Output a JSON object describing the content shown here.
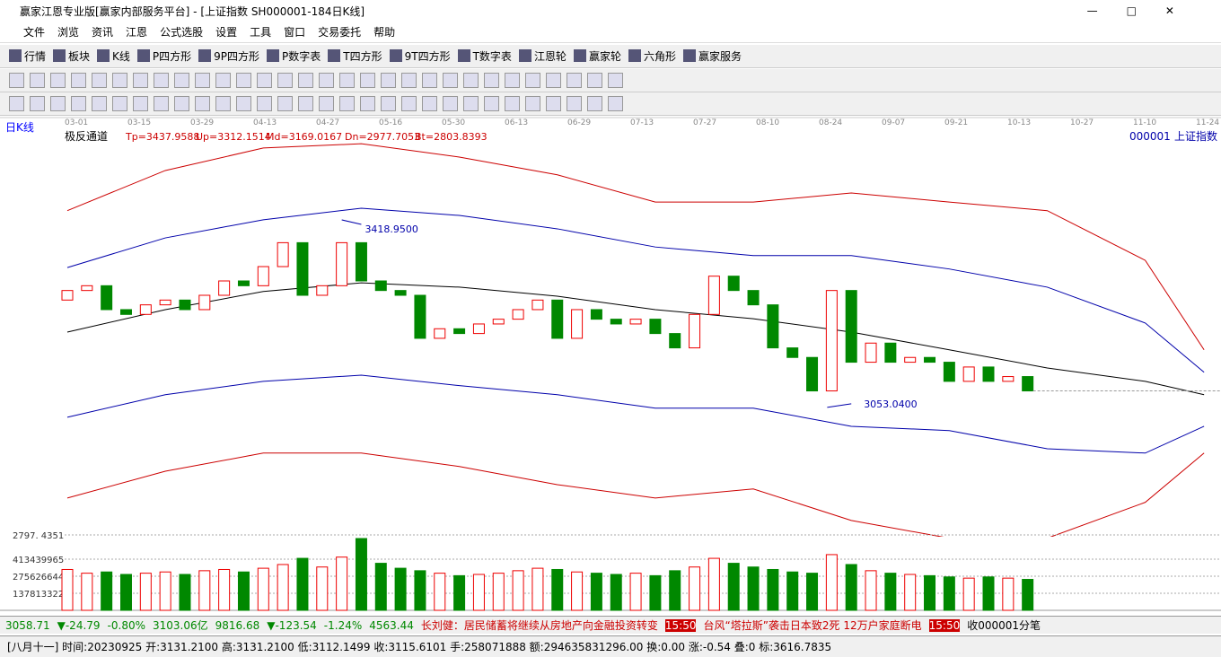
{
  "window_title": "赢家江恩专业版[赢家内部服务平台] - [上证指数  SH000001-184日K线]",
  "menu": [
    "文件",
    "浏览",
    "资讯",
    "江恩",
    "公式选股",
    "设置",
    "工具",
    "窗口",
    "交易委托",
    "帮助"
  ],
  "toolbar": [
    "行情",
    "板块",
    "K线",
    "P四方形",
    "9P四方形",
    "P数字表",
    "T四方形",
    "9T四方形",
    "T数字表",
    "江恩轮",
    "赢家轮",
    "六角形",
    "赢家服务"
  ],
  "chart_data": {
    "type": "candlestick",
    "period_label": "日K线",
    "indicator": "极反通道",
    "params": [
      "Tp=3437.9588",
      "Up=3312.1514",
      "Md=3169.0167",
      "Dn=2977.7053",
      "Bt=2803.8393"
    ],
    "code": "000001",
    "name": "上证指数",
    "dates": [
      "03-01",
      "03-15",
      "03-29",
      "04-13",
      "04-27",
      "05-16",
      "05-30",
      "06-13",
      "06-29",
      "07-13",
      "07-27",
      "08-10",
      "08-24",
      "09-07",
      "09-21",
      "10-13",
      "10-27",
      "11-10",
      "11-24"
    ],
    "high_label": "3418.9500",
    "high_value": 3418.95,
    "low_label": "3053.0400",
    "low_value": 3053.04,
    "ylim": [
      2760,
      3616
    ],
    "opens": [
      3270,
      3290,
      3300,
      3250,
      3240,
      3260,
      3270,
      3250,
      3280,
      3310,
      3300,
      3340,
      3390,
      3280,
      3300,
      3390,
      3310,
      3290,
      3280,
      3190,
      3210,
      3200,
      3220,
      3230,
      3250,
      3270,
      3190,
      3250,
      3230,
      3220,
      3230,
      3200,
      3170,
      3240,
      3320,
      3290,
      3260,
      3170,
      3150,
      3080,
      3290,
      3140,
      3180,
      3140,
      3150,
      3140,
      3100,
      3130,
      3100,
      3110
    ],
    "closes": [
      3290,
      3300,
      3250,
      3240,
      3260,
      3270,
      3250,
      3280,
      3310,
      3300,
      3340,
      3390,
      3280,
      3300,
      3390,
      3310,
      3290,
      3280,
      3190,
      3210,
      3200,
      3220,
      3230,
      3250,
      3270,
      3190,
      3250,
      3230,
      3220,
      3230,
      3200,
      3170,
      3240,
      3320,
      3290,
      3260,
      3170,
      3150,
      3080,
      3290,
      3140,
      3180,
      3140,
      3150,
      3140,
      3100,
      3130,
      3100,
      3110,
      3080
    ],
    "bands": {
      "index": [
        0,
        5,
        10,
        15,
        20,
        25,
        30,
        35,
        40,
        45,
        50,
        55,
        58
      ],
      "mid": [
        3203,
        3250,
        3288,
        3306,
        3297,
        3278,
        3250,
        3231,
        3203,
        3166,
        3128,
        3100,
        3072
      ],
      "upper": [
        3338,
        3400,
        3438,
        3462,
        3447,
        3419,
        3381,
        3363,
        3363,
        3335,
        3297,
        3222,
        3119
      ],
      "lower": [
        3025,
        3072,
        3100,
        3113,
        3091,
        3072,
        3044,
        3044,
        3006,
        2997,
        2959,
        2950,
        3006
      ],
      "outer_upper": [
        3457,
        3541,
        3588,
        3597,
        3569,
        3532,
        3475,
        3475,
        3494,
        3475,
        3457,
        3353,
        3166
      ],
      "outer_lower": [
        2856,
        2912,
        2950,
        2950,
        2922,
        2884,
        2856,
        2875,
        2809,
        2772,
        2772,
        2847,
        2950
      ]
    },
    "volume": {
      "top_label": "2797. 4351",
      "ylim": [
        0,
        609000000
      ],
      "yticks": [
        137813322,
        275626644,
        413439965
      ],
      "values": [
        330000000,
        300000000,
        310000000,
        290000000,
        300000000,
        310000000,
        290000000,
        320000000,
        330000000,
        310000000,
        340000000,
        370000000,
        420000000,
        350000000,
        430000000,
        580000000,
        380000000,
        340000000,
        320000000,
        300000000,
        280000000,
        290000000,
        300000000,
        320000000,
        340000000,
        330000000,
        310000000,
        300000000,
        290000000,
        300000000,
        280000000,
        320000000,
        350000000,
        420000000,
        380000000,
        350000000,
        330000000,
        310000000,
        300000000,
        450000000,
        370000000,
        320000000,
        300000000,
        290000000,
        280000000,
        270000000,
        260000000,
        270000000,
        260000000,
        250000000
      ]
    }
  },
  "status": {
    "sh": [
      "3058.71",
      "▼-24.79",
      "-0.80%",
      "3103.06亿"
    ],
    "sz": [
      "9816.68",
      "▼-123.54",
      "-1.24%",
      "4563.44"
    ],
    "news": [
      "长刘健：居民储蓄将继续从房地产向金融投资转变",
      "15:50",
      "台风“塔拉斯”袭击日本致2死 12万户家庭断电",
      "15:50"
    ],
    "right": "收000001分笔",
    "info": "[八月十一] 时间:20230925 开:3131.2100 高:3131.2100 低:3112.1499 收:3115.6101 手:258071888 额:294635831296.00 换:0.00 涨:-0.54 叠:0 标:3616.7835"
  }
}
